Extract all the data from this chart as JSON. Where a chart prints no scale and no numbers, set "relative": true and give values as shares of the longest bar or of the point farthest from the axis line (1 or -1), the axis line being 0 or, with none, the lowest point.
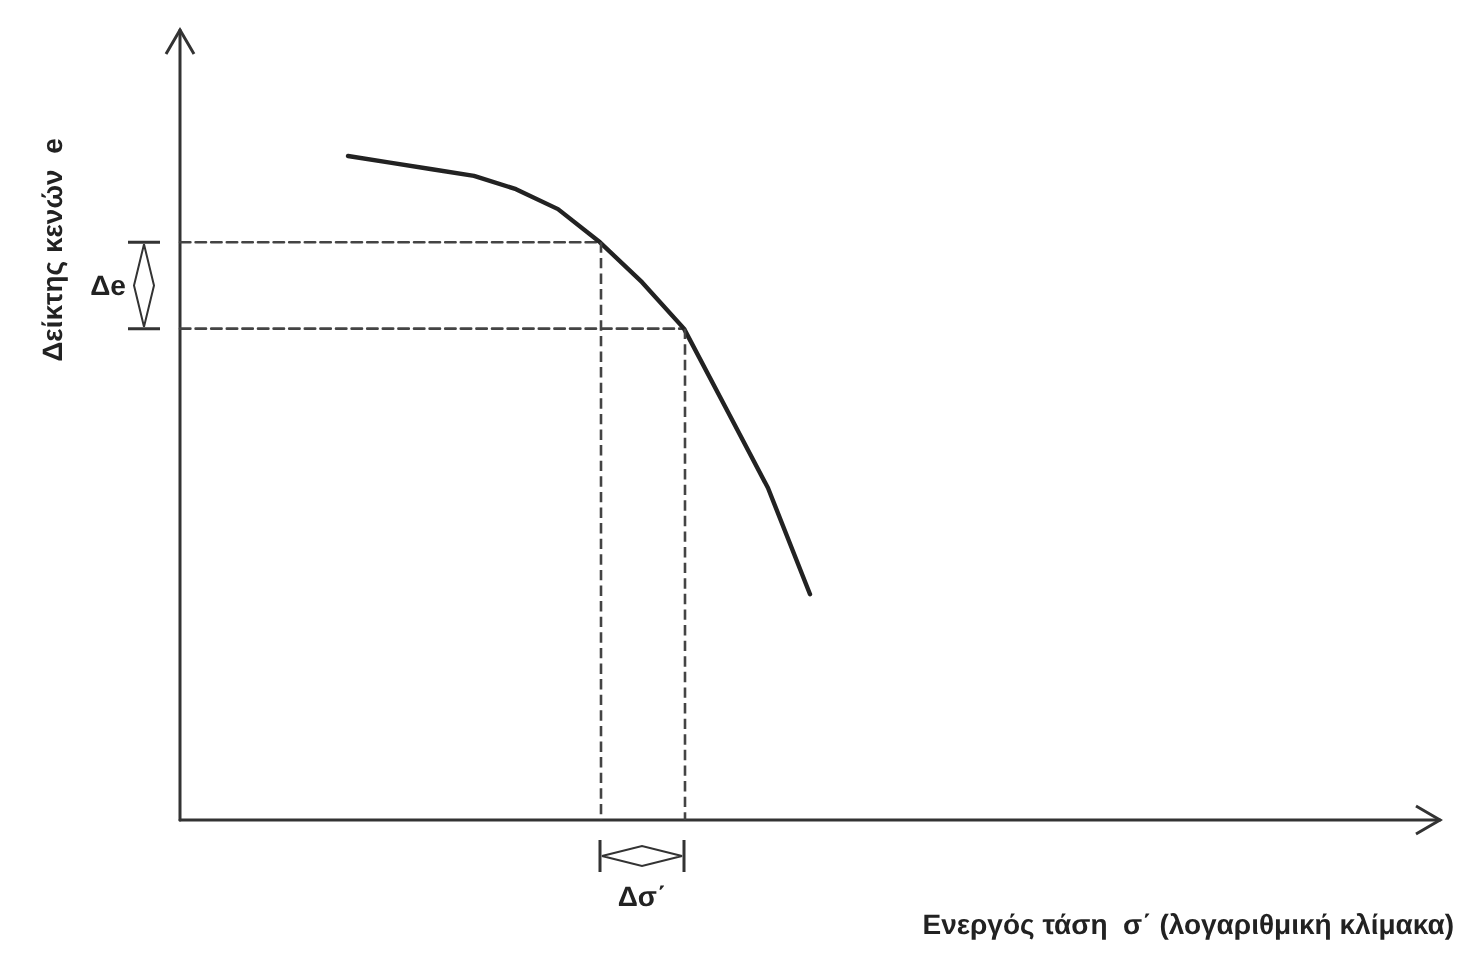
{
  "chart_data": {
    "type": "line",
    "relative": true,
    "marker": "none",
    "xlabel": "Ενεργός τάση  σ΄ (λογαριθμική κλίμακα)",
    "ylabel": "Δείκτης κενών  e",
    "annotations": [
      "Δe",
      "Δσ΄"
    ],
    "categories": [
      null,
      null,
      null,
      null,
      null,
      null,
      null,
      null,
      null,
      null,
      null,
      null,
      null,
      null,
      null,
      null,
      null,
      null,
      null,
      null,
      null,
      null,
      null,
      null,
      null,
      null,
      null,
      null,
      null,
      null,
      null
    ],
    "series": [
      {
        "color": "#222222",
        "values": [
          null,
          null,
          null,
          null,
          1.0,
          0.99,
          0.98,
          0.97,
          0.95,
          0.92,
          0.87,
          0.81,
          0.74,
          0.62,
          0.5,
          0.34,
          null,
          null,
          null,
          null,
          null,
          null,
          null,
          null,
          null,
          null,
          null,
          null,
          null,
          null,
          null
        ]
      },
      {
        "color": "#444444",
        "line_style": "dashed",
        "values": [
          0.87,
          0.87,
          0.87,
          0.87,
          0.87,
          0.87,
          0.87,
          0.87,
          0.87,
          0.87,
          0.87,
          null,
          null,
          null,
          null,
          null,
          null,
          null,
          null,
          null,
          null,
          null,
          null,
          null,
          null,
          null,
          null,
          null,
          null,
          null,
          null
        ]
      },
      {
        "color": "#444444",
        "line_style": "dashed",
        "values": [
          0.74,
          0.74,
          0.74,
          0.74,
          0.74,
          0.74,
          0.74,
          0.74,
          0.74,
          0.74,
          0.74,
          0.74,
          0.74,
          null,
          null,
          null,
          null,
          null,
          null,
          null,
          null,
          null,
          null,
          null,
          null,
          null,
          null,
          null,
          null,
          null,
          null
        ]
      }
    ]
  }
}
